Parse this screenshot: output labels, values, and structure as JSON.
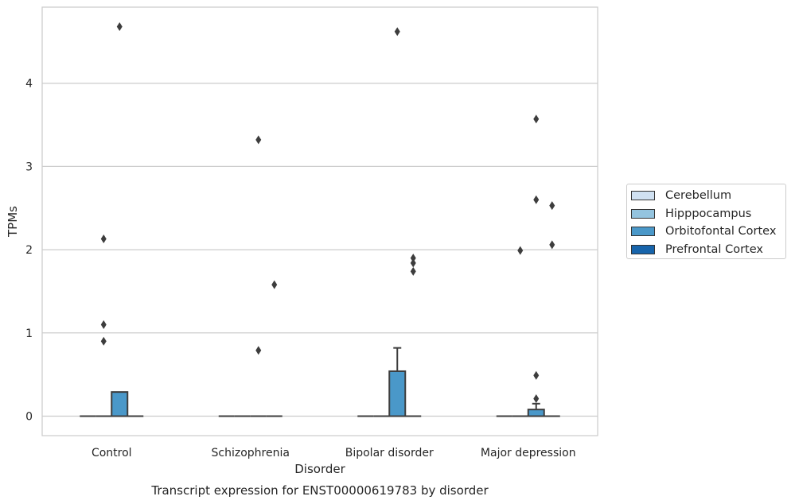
{
  "chart_data": {
    "type": "box",
    "title": "Transcript expression for ENST00000619783 by disorder",
    "xlabel": "Disorder",
    "ylabel": "TPMs",
    "ylim": [
      -0.23,
      4.9
    ],
    "yticks": [
      0,
      1,
      2,
      3,
      4
    ],
    "grid": "horizontal",
    "legend_position": "right",
    "categories": [
      "Control",
      "Schizophrenia",
      "Bipolar disorder",
      "Major depression"
    ],
    "series": [
      {
        "name": "Cerebellum",
        "color": "#d0e1f2",
        "boxes": [
          {
            "q1": 0,
            "median": 0,
            "q3": 0,
            "whislo": 0,
            "whishi": 0,
            "fliers": []
          },
          {
            "q1": 0,
            "median": 0,
            "q3": 0,
            "whislo": 0,
            "whishi": 0,
            "fliers": []
          },
          {
            "q1": 0,
            "median": 0,
            "q3": 0,
            "whislo": 0,
            "whishi": 0,
            "fliers": []
          },
          {
            "q1": 0,
            "median": 0,
            "q3": 0,
            "whislo": 0,
            "whishi": 0,
            "fliers": []
          }
        ]
      },
      {
        "name": "Hipppocampus",
        "color": "#94c4df",
        "boxes": [
          {
            "q1": 0,
            "median": 0,
            "q3": 0,
            "whislo": 0,
            "whishi": 0,
            "fliers": [
              0.9,
              1.1,
              2.13
            ]
          },
          {
            "q1": 0,
            "median": 0,
            "q3": 0,
            "whislo": 0,
            "whishi": 0,
            "fliers": []
          },
          {
            "q1": 0,
            "median": 0,
            "q3": 0,
            "whislo": 0,
            "whishi": 0,
            "fliers": []
          },
          {
            "q1": 0,
            "median": 0,
            "q3": 0,
            "whislo": 0,
            "whishi": 0,
            "fliers": [
              1.99
            ]
          }
        ]
      },
      {
        "name": "Orbitofontal Cortex",
        "color": "#4a98c9",
        "boxes": [
          {
            "q1": 0,
            "median": 0,
            "q3": 0.29,
            "whislo": 0,
            "whishi": 0.29,
            "fliers": [
              4.68
            ]
          },
          {
            "q1": 0,
            "median": 0,
            "q3": 0,
            "whislo": 0,
            "whishi": 0,
            "fliers": [
              0.79,
              3.32
            ]
          },
          {
            "q1": 0,
            "median": 0,
            "q3": 0.54,
            "whislo": 0,
            "whishi": 0.82,
            "fliers": [
              4.62
            ]
          },
          {
            "q1": 0,
            "median": 0,
            "q3": 0.08,
            "whislo": 0,
            "whishi": 0.15,
            "fliers": [
              0.21,
              0.49,
              2.6,
              3.57
            ]
          }
        ]
      },
      {
        "name": "Prefrontal Cortex",
        "color": "#1764ab",
        "boxes": [
          {
            "q1": 0,
            "median": 0,
            "q3": 0,
            "whislo": 0,
            "whishi": 0,
            "fliers": []
          },
          {
            "q1": 0,
            "median": 0,
            "q3": 0,
            "whislo": 0,
            "whishi": 0,
            "fliers": [
              1.58
            ]
          },
          {
            "q1": 0,
            "median": 0,
            "q3": 0,
            "whislo": 0,
            "whishi": 0,
            "fliers": [
              1.74,
              1.84,
              1.9
            ]
          },
          {
            "q1": 0,
            "median": 0,
            "q3": 0,
            "whislo": 0,
            "whishi": 0,
            "fliers": [
              2.06,
              2.53
            ]
          }
        ]
      }
    ]
  }
}
